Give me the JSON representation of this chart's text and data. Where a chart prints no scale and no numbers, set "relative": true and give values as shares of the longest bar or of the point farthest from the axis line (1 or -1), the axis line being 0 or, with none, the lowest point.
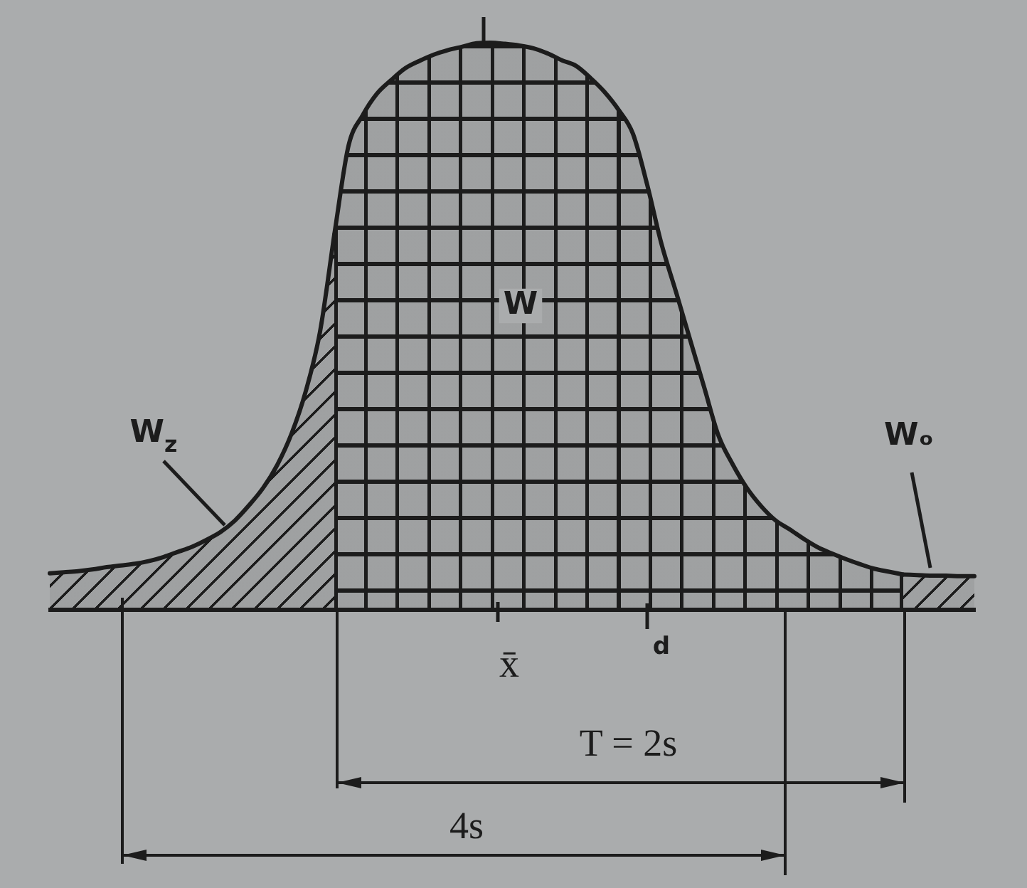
{
  "chart_data": {
    "type": "area",
    "relative": true,
    "categories": [
      null,
      null,
      null,
      null,
      null,
      null,
      null,
      null,
      null,
      null,
      null,
      null,
      null,
      null,
      null,
      null,
      null,
      null,
      null,
      null,
      null,
      null,
      null,
      null,
      null,
      null,
      null,
      null,
      null,
      null,
      null,
      null,
      null,
      null,
      null,
      null,
      null,
      null,
      null,
      null,
      null,
      null,
      null,
      null,
      null,
      null,
      null,
      null,
      null,
      null,
      null,
      null,
      null,
      null,
      null,
      null,
      null,
      null,
      null,
      null,
      null,
      null,
      null,
      null,
      null,
      null
    ],
    "series": [
      {
        "name": "W$_{z}$",
        "color": "#1c1c1c",
        "values": [
          0.063,
          0.065,
          0.067,
          0.07,
          0.074,
          0.077,
          0.08,
          0.085,
          0.092,
          0.101,
          0.11,
          0.122,
          0.136,
          0.156,
          0.183,
          0.214,
          0.255,
          0.31,
          0.385,
          0.49,
          0.661,
          null,
          null,
          null,
          null,
          null,
          null,
          null,
          null,
          null,
          null,
          null,
          null,
          null,
          null,
          null,
          null,
          null,
          null,
          null,
          null,
          null,
          null,
          null,
          null,
          null,
          null,
          null,
          null,
          null,
          null,
          null,
          null,
          null,
          null,
          null,
          null,
          null,
          null,
          null,
          null,
          null,
          null,
          null,
          null,
          null
        ]
      },
      {
        "name": "W",
        "color": "#1c1c1c",
        "values": [
          null,
          null,
          null,
          null,
          null,
          null,
          null,
          null,
          null,
          null,
          null,
          null,
          null,
          null,
          null,
          null,
          null,
          null,
          null,
          null,
          0.661,
          0.818,
          0.872,
          0.91,
          0.934,
          0.955,
          0.968,
          0.979,
          0.987,
          0.993,
          0.999,
          1.0,
          0.998,
          0.995,
          0.99,
          0.981,
          0.969,
          0.959,
          0.938,
          0.913,
          0.881,
          0.839,
          0.749,
          0.645,
          0.562,
          0.477,
          0.392,
          0.307,
          0.256,
          0.214,
          0.182,
          0.157,
          0.141,
          0.124,
          0.109,
          0.098,
          0.088,
          0.079,
          0.071,
          0.066,
          0.061,
          null,
          null,
          null,
          null,
          null
        ]
      },
      {
        "name": "Wₒ",
        "color": "#1c1c1c",
        "values": [
          null,
          null,
          null,
          null,
          null,
          null,
          null,
          null,
          null,
          null,
          null,
          null,
          null,
          null,
          null,
          null,
          null,
          null,
          null,
          null,
          null,
          null,
          null,
          null,
          null,
          null,
          null,
          null,
          null,
          null,
          null,
          null,
          null,
          null,
          null,
          null,
          null,
          null,
          null,
          null,
          null,
          null,
          null,
          null,
          null,
          null,
          null,
          null,
          null,
          null,
          null,
          null,
          null,
          null,
          null,
          null,
          null,
          null,
          null,
          null,
          0.061,
          0.06,
          0.059,
          0.059,
          0.058,
          0.058
        ]
      }
    ],
    "annotations": [
      "x̄",
      "d",
      "T = 2s",
      "4s"
    ]
  }
}
